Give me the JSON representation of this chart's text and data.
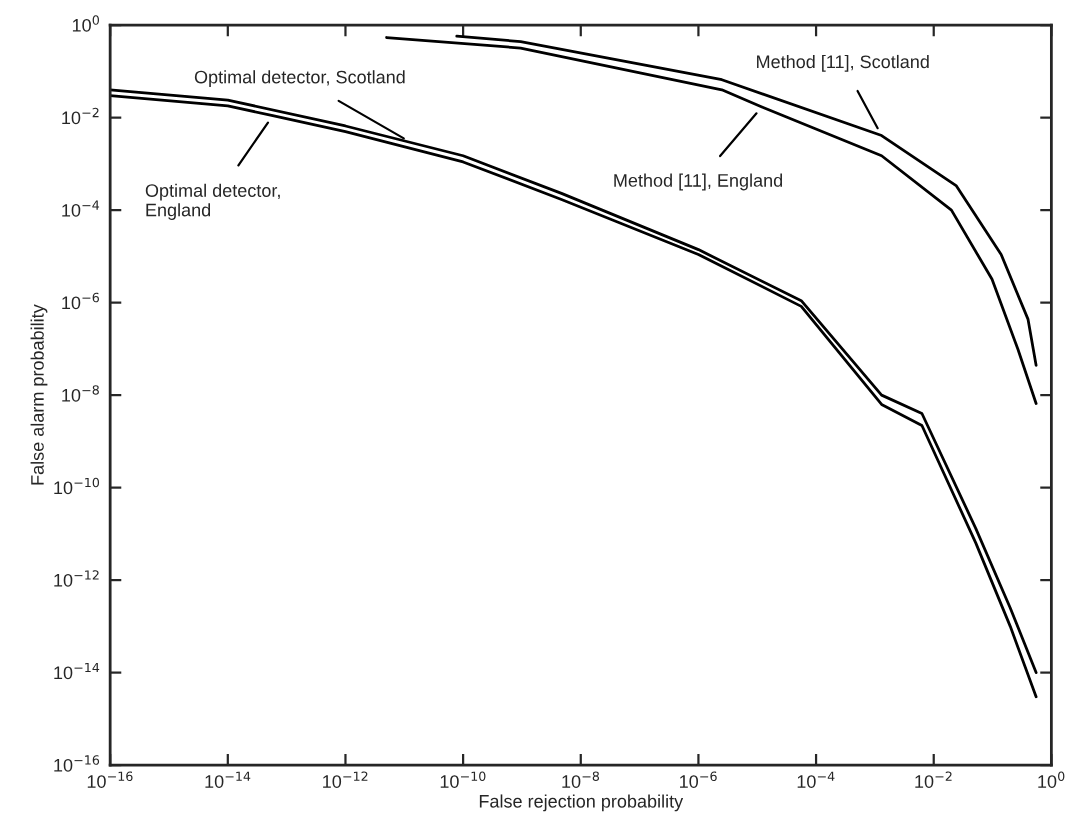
{
  "chart_data": {
    "type": "line",
    "xlabel": "False rejection probability",
    "ylabel": "False alarm probability",
    "log": "xy",
    "grid": false,
    "marker": "none",
    "line_style": "solid",
    "xlim": [
      1e-16,
      1
    ],
    "ylim": [
      1e-16,
      1
    ],
    "xticks": [
      {
        "value": 1e-16,
        "label": "10$^{−16}$"
      },
      {
        "value": 1e-14,
        "label": "10$^{−14}$"
      },
      {
        "value": 1e-12,
        "label": "10$^{−12}$"
      },
      {
        "value": 1e-10,
        "label": "10$^{−10}$"
      },
      {
        "value": 1e-08,
        "label": "10$^{−8}$"
      },
      {
        "value": 1e-06,
        "label": "10$^{−6}$"
      },
      {
        "value": 0.0001,
        "label": "10$^{−4}$"
      },
      {
        "value": 0.01,
        "label": "10$^{−2}$"
      },
      {
        "value": 1,
        "label": "10$^{0}$"
      }
    ],
    "yticks": [
      {
        "value": 1e-16,
        "label": "10$^{−16}$"
      },
      {
        "value": 1e-14,
        "label": "10$^{−14}$"
      },
      {
        "value": 1e-12,
        "label": "10$^{−12}$"
      },
      {
        "value": 1e-10,
        "label": "10$^{−10}$"
      },
      {
        "value": 1e-08,
        "label": "10$^{−8}$"
      },
      {
        "value": 1e-06,
        "label": "10$^{−6}$"
      },
      {
        "value": 0.0001,
        "label": "10$^{−4}$"
      },
      {
        "value": 0.01,
        "label": "10$^{−2}$"
      },
      {
        "value": 1,
        "label": "10$^{0}$"
      }
    ],
    "series": [
      {
        "color": "#000000",
        "x": [
          1e-16,
          1e-14,
          1e-12,
          1e-10,
          4.7e-09,
          1e-06,
          5.6e-05,
          0.0013,
          0.0063,
          0.052,
          0.2,
          0.55
        ],
        "values": [
          0.04,
          0.024,
          0.0066,
          0.0015,
          0.00023,
          1.4e-05,
          1.1e-06,
          1e-08,
          4e-09,
          1.3e-11,
          2.5e-13,
          1e-14
        ]
      },
      {
        "color": "#000000",
        "x": [
          1e-16,
          1e-14,
          5.8e-14,
          1e-12,
          1e-10,
          4.7e-09,
          1e-06,
          5.6e-05,
          0.0013,
          0.0063,
          0.052,
          0.2,
          0.55
        ],
        "values": [
          0.03,
          0.018,
          0.011,
          0.005,
          0.0011,
          0.00017,
          1.1e-05,
          8.3e-07,
          6.3e-09,
          2.2e-09,
          6.3e-12,
          1e-13,
          3e-15
        ]
      },
      {
        "color": "#000000",
        "x": [
          7.8e-11,
          9.5e-10,
          2.5e-06,
          0.0013,
          0.024,
          0.14,
          0.4,
          0.55
        ],
        "values": [
          0.58,
          0.44,
          0.066,
          0.0041,
          0.00034,
          1.1e-05,
          4.4e-07,
          4.4e-08
        ]
      },
      {
        "color": "#000000",
        "x": [
          5e-12,
          9.5e-10,
          2.5e-06,
          1.2e-05,
          0.0013,
          0.02,
          0.098,
          0.27,
          0.55
        ],
        "values": [
          0.54,
          0.32,
          0.04,
          0.017,
          0.0015,
          0.0001,
          3.2e-06,
          9.8e-08,
          6.6e-09
        ]
      }
    ],
    "annotations": [
      {
        "text": "Optimal detector, Scotland",
        "x": 1.3e-11,
        "y": 0.0029
      },
      {
        "text": "Optimal detector,\nEngland",
        "x": 5.8e-14,
        "y": 0.011
      },
      {
        "text": "Method [11], Scotland",
        "x": 0.0013,
        "y": 0.0041
      },
      {
        "text": "Method [11], England",
        "x": 1.2e-05,
        "y": 0.017
      }
    ]
  }
}
